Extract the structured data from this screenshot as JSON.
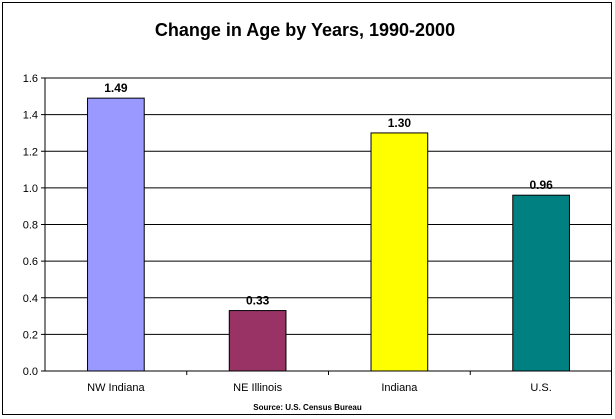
{
  "chart_data": {
    "type": "bar",
    "title": "Change in Age by Years, 1990-2000",
    "categories": [
      "NW Indiana",
      "NE Illinois",
      "Indiana",
      "U.S."
    ],
    "values": [
      1.49,
      0.33,
      1.3,
      0.96
    ],
    "value_labels": [
      "1.49",
      "0.33",
      "1.30",
      "0.96"
    ],
    "colors": [
      "#9999ff",
      "#993366",
      "#ffff00",
      "#008080"
    ],
    "ylim": [
      0,
      1.6
    ],
    "yticks": [
      "0.0",
      "0.2",
      "0.4",
      "0.6",
      "0.8",
      "1.0",
      "1.2",
      "1.4",
      "1.6"
    ],
    "xlabel": "",
    "ylabel": "",
    "grid": true,
    "legend": "none",
    "source": "Source: U.S. Census Bureau"
  }
}
